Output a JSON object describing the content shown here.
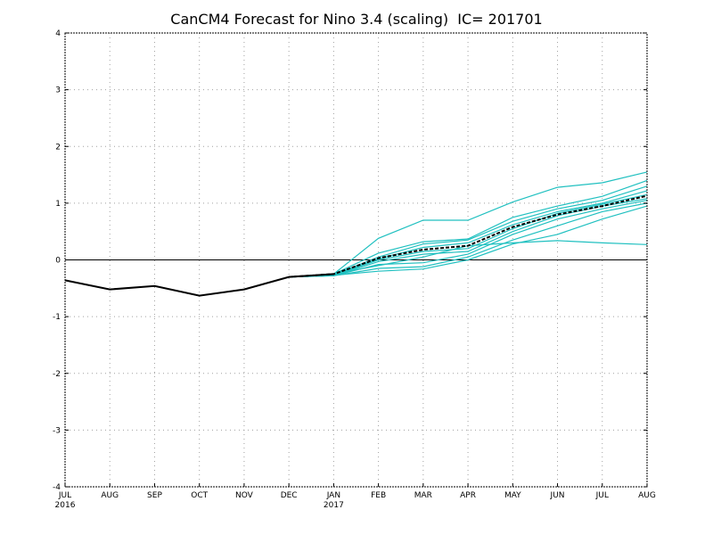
{
  "chart_data": {
    "type": "line",
    "title": "CanCM4 Forecast for Nino 3.4 (scaling)  IC= 201701",
    "xlabel": "",
    "ylabel": "",
    "categories": [
      "JUL",
      "AUG",
      "SEP",
      "OCT",
      "NOV",
      "DEC",
      "JAN",
      "FEB",
      "MAR",
      "APR",
      "MAY",
      "JUN",
      "JUL",
      "AUG"
    ],
    "year_labels": [
      {
        "index": 0,
        "label": "2016"
      },
      {
        "index": 6,
        "label": "2017"
      }
    ],
    "yticks": [
      "-4",
      "-3",
      "-2",
      "-1",
      "0",
      "1",
      "2",
      "3",
      "4"
    ],
    "ylim": [
      -4,
      4
    ],
    "grid": true,
    "colors": {
      "observed": "#000000",
      "ensemble": "#20c0c0",
      "mean": "#000000"
    },
    "observed": {
      "x_index": [
        0,
        1,
        2,
        3,
        4,
        5,
        6
      ],
      "values": [
        -0.36,
        -0.52,
        -0.46,
        -0.63,
        -0.52,
        -0.3,
        -0.25
      ]
    },
    "ensemble_mean": {
      "x_index": [
        5,
        6,
        7,
        8,
        9,
        10,
        11,
        12,
        13
      ],
      "values": [
        -0.3,
        -0.25,
        0.03,
        0.18,
        0.25,
        0.58,
        0.8,
        0.95,
        1.13
      ]
    },
    "members": [
      {
        "x_index": [
          5,
          6,
          7,
          8,
          9,
          10,
          11,
          12,
          13
        ],
        "values": [
          -0.3,
          -0.25,
          0.38,
          0.7,
          0.7,
          1.02,
          1.28,
          1.36,
          1.55
        ]
      },
      {
        "x_index": [
          5,
          6,
          7,
          8,
          9,
          10,
          11,
          12,
          13
        ],
        "values": [
          -0.3,
          -0.25,
          0.12,
          0.32,
          0.37,
          0.75,
          0.95,
          1.12,
          1.4
        ]
      },
      {
        "x_index": [
          5,
          6,
          7,
          8,
          9,
          10,
          11,
          12,
          13
        ],
        "values": [
          -0.3,
          -0.26,
          0.05,
          0.28,
          0.35,
          0.68,
          0.9,
          1.05,
          1.3
        ]
      },
      {
        "x_index": [
          5,
          6,
          7,
          8,
          9,
          10,
          11,
          12,
          13
        ],
        "values": [
          -0.3,
          -0.27,
          0.02,
          0.22,
          0.3,
          0.62,
          0.85,
          1.0,
          1.22
        ]
      },
      {
        "x_index": [
          5,
          6,
          7,
          8,
          9,
          10,
          11,
          12,
          13
        ],
        "values": [
          -0.3,
          -0.27,
          0.0,
          0.15,
          0.2,
          0.55,
          0.82,
          0.98,
          1.15
        ]
      },
      {
        "x_index": [
          5,
          6,
          7,
          8,
          9,
          10,
          11,
          12,
          13
        ],
        "values": [
          -0.3,
          -0.28,
          -0.03,
          0.1,
          0.15,
          0.5,
          0.78,
          0.95,
          1.08
        ]
      },
      {
        "x_index": [
          5,
          6,
          7,
          8,
          9,
          10,
          11,
          12,
          13
        ],
        "values": [
          -0.3,
          -0.28,
          -0.08,
          -0.05,
          0.1,
          0.45,
          0.72,
          0.9,
          1.05
        ]
      },
      {
        "x_index": [
          5,
          6,
          7,
          8,
          9,
          10,
          11,
          12,
          13
        ],
        "values": [
          -0.3,
          -0.28,
          -0.15,
          -0.12,
          0.05,
          0.35,
          0.6,
          0.85,
          1.0
        ]
      },
      {
        "x_index": [
          5,
          6,
          7,
          8,
          9,
          10,
          11,
          12,
          13
        ],
        "values": [
          -0.3,
          -0.27,
          -0.2,
          -0.16,
          0.0,
          0.28,
          0.45,
          0.72,
          0.95
        ]
      },
      {
        "x_index": [
          5,
          6,
          7,
          8,
          9,
          10,
          11,
          12,
          13
        ],
        "values": [
          -0.3,
          -0.25,
          -0.1,
          0.05,
          0.25,
          0.3,
          0.34,
          0.3,
          0.27
        ]
      }
    ]
  }
}
